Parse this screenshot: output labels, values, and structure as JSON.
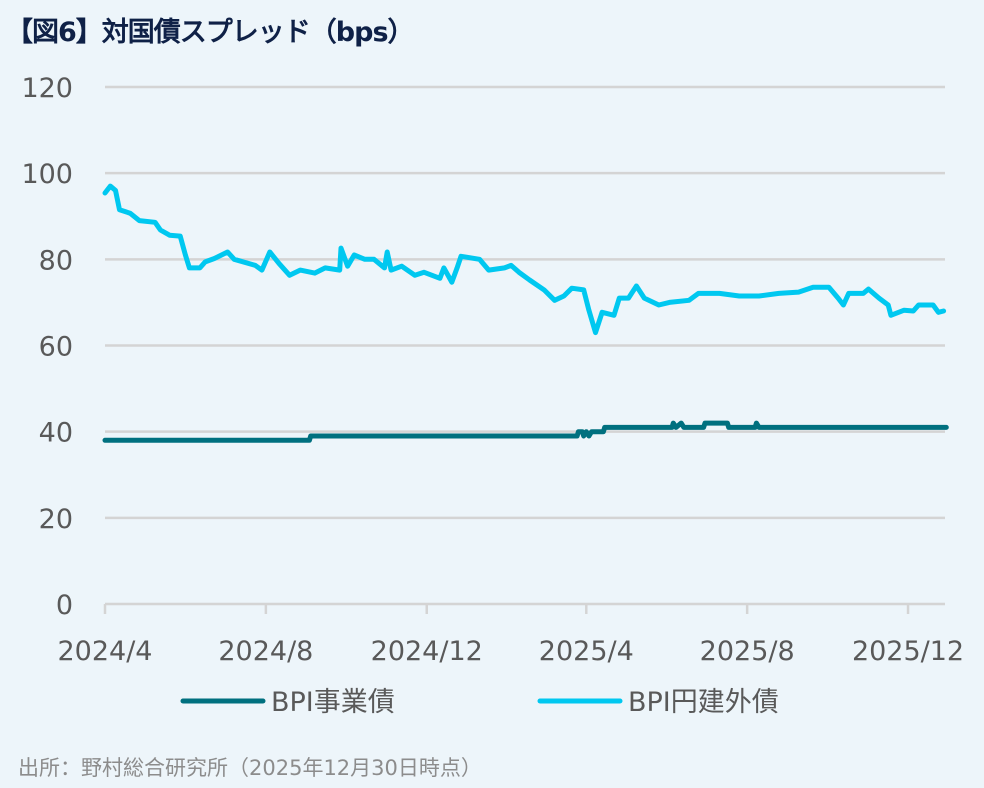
{
  "title": "【図6】対国債スプレッド（bps）",
  "source": "出所：野村総合研究所（2025年12月30日時点）",
  "chart_data": {
    "type": "line",
    "title": "【図6】対国債スプレッド（bps）",
    "xlabel": "",
    "ylabel": "",
    "ylim": [
      0,
      120
    ],
    "yticks": [
      0,
      20,
      40,
      60,
      80,
      100,
      120
    ],
    "xticks": [
      {
        "date": "2024-04-01",
        "label": "2024/4"
      },
      {
        "date": "2024-08-01",
        "label": "2024/8"
      },
      {
        "date": "2024-12-01",
        "label": "2024/12"
      },
      {
        "date": "2025-04-01",
        "label": "2025/4"
      },
      {
        "date": "2025-08-01",
        "label": "2025/8"
      },
      {
        "date": "2025-12-01",
        "label": "2025/12"
      }
    ],
    "xlim": [
      "2024-04-01",
      "2025-12-30"
    ],
    "grid": "horizontal",
    "legend_position": "bottom",
    "series": [
      {
        "name": "BPI事業債",
        "color": "#00707f",
        "points": [
          [
            "2024-04-01",
            38
          ],
          [
            "2024-09-03",
            38
          ],
          [
            "2024-09-04",
            39
          ],
          [
            "2025-03-25",
            39
          ],
          [
            "2025-03-26",
            40
          ],
          [
            "2025-03-29",
            40
          ],
          [
            "2025-03-30",
            39
          ],
          [
            "2025-04-01",
            40
          ],
          [
            "2025-04-03",
            39
          ],
          [
            "2025-04-05",
            40
          ],
          [
            "2025-04-14",
            40
          ],
          [
            "2025-04-15",
            41
          ],
          [
            "2025-06-05",
            41
          ],
          [
            "2025-06-06",
            42
          ],
          [
            "2025-06-08",
            41
          ],
          [
            "2025-06-12",
            42
          ],
          [
            "2025-06-14",
            41
          ],
          [
            "2025-06-29",
            41
          ],
          [
            "2025-06-30",
            42
          ],
          [
            "2025-07-17",
            42
          ],
          [
            "2025-07-18",
            41
          ],
          [
            "2025-08-07",
            41
          ],
          [
            "2025-08-08",
            42
          ],
          [
            "2025-08-10",
            41
          ],
          [
            "2025-12-30",
            41
          ]
        ]
      },
      {
        "name": "BPI円建外債",
        "color": "#00c8f0",
        "points": [
          [
            "2024-04-01",
            95.4
          ],
          [
            "2024-04-05",
            97
          ],
          [
            "2024-04-09",
            96
          ],
          [
            "2024-04-12",
            91.5
          ],
          [
            "2024-04-20",
            90.7
          ],
          [
            "2024-04-27",
            89
          ],
          [
            "2024-05-09",
            88.6
          ],
          [
            "2024-05-13",
            86.8
          ],
          [
            "2024-05-20",
            85.6
          ],
          [
            "2024-05-28",
            85.4
          ],
          [
            "2024-06-01",
            81
          ],
          [
            "2024-06-04",
            78
          ],
          [
            "2024-06-12",
            78
          ],
          [
            "2024-06-16",
            79.4
          ],
          [
            "2024-06-23",
            80.2
          ],
          [
            "2024-07-03",
            81.7
          ],
          [
            "2024-07-08",
            80
          ],
          [
            "2024-07-24",
            78.6
          ],
          [
            "2024-07-29",
            77.5
          ],
          [
            "2024-08-04",
            81.7
          ],
          [
            "2024-08-11",
            79
          ],
          [
            "2024-08-19",
            76.3
          ],
          [
            "2024-08-27",
            77.5
          ],
          [
            "2024-09-07",
            76.8
          ],
          [
            "2024-09-15",
            78
          ],
          [
            "2024-09-26",
            77.5
          ],
          [
            "2024-09-27",
            82.6
          ],
          [
            "2024-10-02",
            78.4
          ],
          [
            "2024-10-07",
            81
          ],
          [
            "2024-10-15",
            80
          ],
          [
            "2024-10-22",
            80
          ],
          [
            "2024-10-30",
            78
          ],
          [
            "2024-11-01",
            81.7
          ],
          [
            "2024-11-04",
            77.5
          ],
          [
            "2024-11-12",
            78.4
          ],
          [
            "2024-11-22",
            76.3
          ],
          [
            "2024-11-29",
            77
          ],
          [
            "2024-12-11",
            75.6
          ],
          [
            "2024-12-14",
            78
          ],
          [
            "2024-12-20",
            74.7
          ],
          [
            "2024-12-24",
            78
          ],
          [
            "2024-12-27",
            80.7
          ],
          [
            "2025-01-10",
            80
          ],
          [
            "2025-01-17",
            77.5
          ],
          [
            "2025-01-29",
            78
          ],
          [
            "2025-02-03",
            78.6
          ],
          [
            "2025-02-09",
            77
          ],
          [
            "2025-02-17",
            75.2
          ],
          [
            "2025-02-28",
            72.9
          ],
          [
            "2025-03-08",
            70.5
          ],
          [
            "2025-03-15",
            71.5
          ],
          [
            "2025-03-21",
            73.3
          ],
          [
            "2025-03-30",
            72.9
          ],
          [
            "2025-04-03",
            68.2
          ],
          [
            "2025-04-08",
            63
          ],
          [
            "2025-04-13",
            67.7
          ],
          [
            "2025-04-22",
            67
          ],
          [
            "2025-04-26",
            71
          ],
          [
            "2025-05-03",
            71
          ],
          [
            "2025-05-09",
            73.8
          ],
          [
            "2025-05-15",
            71
          ],
          [
            "2025-05-26",
            69.4
          ],
          [
            "2025-06-03",
            70
          ],
          [
            "2025-06-18",
            70.5
          ],
          [
            "2025-06-25",
            72.1
          ],
          [
            "2025-07-11",
            72.1
          ],
          [
            "2025-07-26",
            71.5
          ],
          [
            "2025-08-10",
            71.5
          ],
          [
            "2025-08-25",
            72.1
          ],
          [
            "2025-09-09",
            72.4
          ],
          [
            "2025-09-20",
            73.5
          ],
          [
            "2025-10-02",
            73.5
          ],
          [
            "2025-10-09",
            71
          ],
          [
            "2025-10-13",
            69.4
          ],
          [
            "2025-10-17",
            72.1
          ],
          [
            "2025-10-28",
            72.1
          ],
          [
            "2025-11-01",
            73.1
          ],
          [
            "2025-11-09",
            71
          ],
          [
            "2025-11-16",
            69.4
          ],
          [
            "2025-11-18",
            67
          ],
          [
            "2025-11-28",
            68.2
          ],
          [
            "2025-12-05",
            68
          ],
          [
            "2025-12-09",
            69.4
          ],
          [
            "2025-12-20",
            69.4
          ],
          [
            "2025-12-24",
            67.7
          ],
          [
            "2025-12-28",
            68
          ]
        ]
      }
    ]
  }
}
